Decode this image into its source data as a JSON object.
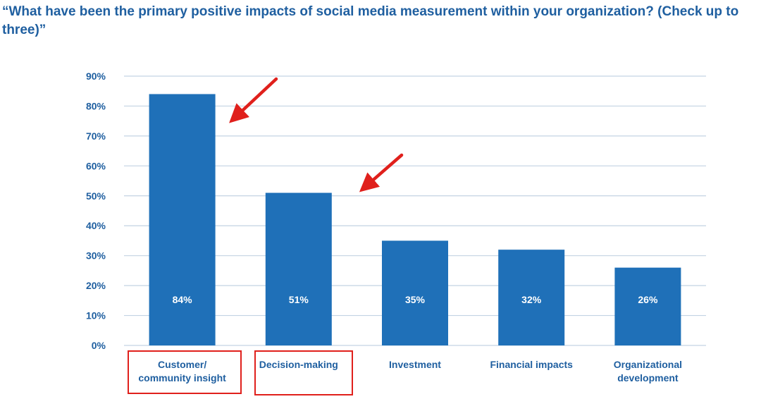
{
  "chart_data": {
    "type": "bar",
    "title": "“What have been the primary positive impacts of social media measurement within your organization? (Check up to three)”",
    "categories": [
      [
        "Customer/",
        "community insight"
      ],
      [
        "Decision-making"
      ],
      [
        "Investment"
      ],
      [
        "Financial impacts"
      ],
      [
        "Organizational",
        "development"
      ]
    ],
    "values": [
      84,
      51,
      35,
      32,
      26
    ],
    "data_labels": [
      "84%",
      "51%",
      "35%",
      "32%",
      "26%"
    ],
    "ylim": [
      0,
      90
    ],
    "y_ticks": [
      0,
      10,
      20,
      30,
      40,
      50,
      60,
      70,
      80,
      90
    ],
    "y_tick_labels": [
      "0%",
      "10%",
      "20%",
      "30%",
      "40%",
      "50%",
      "60%",
      "70%",
      "80%",
      "90%"
    ],
    "xlabel": "",
    "ylabel": "",
    "grid": true,
    "legend": "none",
    "colors": {
      "bar": "#1f70b8",
      "grid": "#c3d3e3",
      "text": "#1f5fa0",
      "data_label": "#ffffff",
      "highlight": "#e0201c"
    },
    "annotations": {
      "highlighted_categories": [
        0,
        1
      ],
      "arrows": "red arrows pointing to the tops of the first two bars",
      "boxes": "red boxes around the first two category labels"
    }
  }
}
